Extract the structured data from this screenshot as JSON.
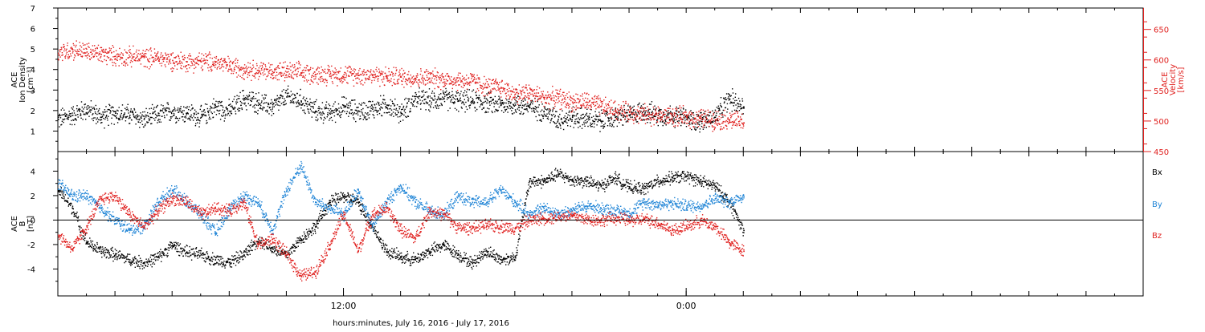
{
  "chart_data": [
    {
      "type": "scatter",
      "title": "",
      "xlabel": "hours:minutes, July 16, 2016 - July 17, 2016",
      "x_units": "hours since 00:00 July 16, 2016",
      "xlim": [
        2.0,
        40.0
      ],
      "x_ticks": [
        {
          "value": 12,
          "label": "12:00"
        },
        {
          "value": 24,
          "label": "0:00"
        }
      ],
      "ylabel_left": [
        "ACE",
        "Ion Density",
        "[cm⁻³]"
      ],
      "ylabel_right": [
        "ACE",
        "Velocity",
        "[km/s]"
      ],
      "ylim_left": [
        0,
        7
      ],
      "ylim_right": [
        450,
        685
      ],
      "y_ticks_left": [
        1,
        2,
        3,
        4,
        5,
        6,
        7
      ],
      "y_ticks_right": [
        450,
        500,
        550,
        600,
        650
      ],
      "grid": false,
      "series": [
        {
          "name": "",
          "axis": "left",
          "color": "#000000",
          "x": [
            2.0,
            2.5,
            3.0,
            3.5,
            4.0,
            4.5,
            5.0,
            5.5,
            6.0,
            6.5,
            7.0,
            7.5,
            8.0,
            8.5,
            9.0,
            9.5,
            10.0,
            10.5,
            11.0,
            11.5,
            12.0,
            12.5,
            13.0,
            13.5,
            14.0,
            14.5,
            15.0,
            15.5,
            16.0,
            16.5,
            17.0,
            17.5,
            18.0,
            18.5,
            19.0,
            19.5,
            20.0,
            20.5,
            21.0,
            21.5,
            22.0,
            22.5,
            23.0,
            23.5,
            24.0,
            24.5,
            25.0,
            25.5,
            26.0
          ],
          "values": [
            1.6,
            1.8,
            2.1,
            1.7,
            1.9,
            1.8,
            1.6,
            1.8,
            2.0,
            1.9,
            1.7,
            2.2,
            2.0,
            2.6,
            2.4,
            2.2,
            2.7,
            2.5,
            2.0,
            1.9,
            2.2,
            2.0,
            2.1,
            2.3,
            1.9,
            2.6,
            2.5,
            2.6,
            2.5,
            2.5,
            2.4,
            2.3,
            2.3,
            2.2,
            2.0,
            1.6,
            1.7,
            1.6,
            1.5,
            1.7,
            1.8,
            2.0,
            1.8,
            1.8,
            1.6,
            1.5,
            1.7,
            2.6,
            2.2
          ]
        },
        {
          "name": "",
          "axis": "right",
          "color": "#e0201e",
          "x": [
            2.0,
            2.5,
            3.0,
            3.5,
            4.0,
            4.5,
            5.0,
            5.5,
            6.0,
            6.5,
            7.0,
            7.5,
            8.0,
            8.5,
            9.0,
            9.5,
            10.0,
            10.5,
            11.0,
            11.5,
            12.0,
            12.5,
            13.0,
            13.5,
            14.0,
            14.5,
            15.0,
            15.5,
            16.0,
            16.5,
            17.0,
            17.5,
            18.0,
            18.5,
            19.0,
            19.5,
            20.0,
            20.5,
            21.0,
            21.5,
            22.0,
            22.5,
            23.0,
            23.5,
            24.0,
            24.5,
            25.0,
            25.5,
            26.0
          ],
          "values": [
            612,
            618,
            614,
            610,
            607,
            606,
            605,
            604,
            600,
            598,
            598,
            597,
            590,
            587,
            584,
            582,
            581,
            580,
            577,
            577,
            577,
            576,
            577,
            573,
            573,
            571,
            571,
            569,
            567,
            566,
            556,
            556,
            545,
            547,
            539,
            538,
            532,
            532,
            525,
            518,
            515,
            512,
            510,
            508,
            507,
            505,
            503,
            503,
            498
          ]
        }
      ]
    },
    {
      "type": "scatter",
      "title": "",
      "xlabel": "hours:minutes, July 16, 2016 - July 17, 2016",
      "x_units": "hours since 00:00 July 16, 2016",
      "xlim": [
        2.0,
        40.0
      ],
      "ylabel": [
        "ACE",
        "B",
        "[nT]"
      ],
      "ylim": [
        -6.2,
        5.6
      ],
      "y_ticks": [
        -4,
        -2,
        0,
        2,
        4
      ],
      "zero_line": true,
      "grid": false,
      "series": [
        {
          "name": "Bx",
          "color": "#000000",
          "x": [
            2.0,
            2.5,
            3.0,
            3.5,
            4.0,
            4.5,
            5.0,
            5.5,
            6.0,
            6.5,
            7.0,
            7.5,
            8.0,
            8.5,
            9.0,
            9.5,
            10.0,
            10.5,
            11.0,
            11.5,
            12.0,
            12.5,
            13.0,
            13.5,
            14.0,
            14.5,
            15.0,
            15.5,
            16.0,
            16.5,
            17.0,
            17.5,
            18.0,
            18.5,
            19.0,
            19.5,
            20.0,
            20.5,
            21.0,
            21.5,
            22.0,
            22.5,
            23.0,
            23.5,
            24.0,
            24.5,
            25.0,
            25.5,
            26.0
          ],
          "values": [
            2.5,
            1.0,
            -1.8,
            -2.5,
            -2.8,
            -3.2,
            -3.5,
            -3.0,
            -2.0,
            -2.6,
            -2.8,
            -3.2,
            -3.4,
            -2.8,
            -1.5,
            -2.3,
            -2.8,
            -1.5,
            -0.5,
            1.5,
            2.0,
            1.5,
            -0.5,
            -2.5,
            -3.0,
            -3.2,
            -2.5,
            -2.0,
            -2.8,
            -3.5,
            -2.5,
            -3.2,
            -3.0,
            3.2,
            3.2,
            3.8,
            3.3,
            3.2,
            2.8,
            3.5,
            2.7,
            2.6,
            3.2,
            3.5,
            3.6,
            3.2,
            2.8,
            1.5,
            -0.8
          ]
        },
        {
          "name": "By",
          "color": "#1f84d6",
          "x": [
            2.0,
            2.5,
            3.0,
            3.5,
            4.0,
            4.5,
            5.0,
            5.5,
            6.0,
            6.5,
            7.0,
            7.5,
            8.0,
            8.5,
            9.0,
            9.5,
            10.0,
            10.5,
            11.0,
            11.5,
            12.0,
            12.5,
            13.0,
            13.5,
            14.0,
            14.5,
            15.0,
            15.5,
            16.0,
            16.5,
            17.0,
            17.5,
            18.0,
            18.5,
            19.0,
            19.5,
            20.0,
            20.5,
            21.0,
            21.5,
            22.0,
            22.5,
            23.0,
            23.5,
            24.0,
            24.5,
            25.0,
            25.5,
            26.0
          ],
          "values": [
            3.0,
            2.0,
            2.0,
            1.0,
            0.0,
            -0.8,
            -0.5,
            1.5,
            2.5,
            1.5,
            0.5,
            -1.0,
            1.0,
            2.0,
            1.5,
            -0.8,
            2.5,
            4.5,
            1.5,
            1.0,
            0.5,
            2.5,
            -0.5,
            1.5,
            2.8,
            1.5,
            0.8,
            0.5,
            2.0,
            1.5,
            1.5,
            2.5,
            1.5,
            0.5,
            1.0,
            0.6,
            0.8,
            1.2,
            1.0,
            0.8,
            0.6,
            1.5,
            1.3,
            1.4,
            1.2,
            1.2,
            1.8,
            1.5,
            2.0
          ]
        },
        {
          "name": "Bz",
          "color": "#e0201e",
          "x": [
            2.0,
            2.5,
            3.0,
            3.5,
            4.0,
            4.5,
            5.0,
            5.5,
            6.0,
            6.5,
            7.0,
            7.5,
            8.0,
            8.5,
            9.0,
            9.5,
            10.0,
            10.5,
            11.0,
            11.5,
            12.0,
            12.5,
            13.0,
            13.5,
            14.0,
            14.5,
            15.0,
            15.5,
            16.0,
            16.5,
            17.0,
            17.5,
            18.0,
            18.5,
            19.0,
            19.5,
            20.0,
            20.5,
            21.0,
            21.5,
            22.0,
            22.5,
            23.0,
            23.5,
            24.0,
            24.5,
            25.0,
            25.5,
            26.0
          ],
          "values": [
            -1.2,
            -2.3,
            -0.5,
            1.8,
            2.0,
            0.5,
            -0.5,
            0.8,
            1.8,
            1.5,
            0.5,
            1.0,
            0.8,
            1.5,
            -2.0,
            -1.5,
            -2.8,
            -4.5,
            -4.2,
            -2.0,
            0.5,
            -2.5,
            0.5,
            1.0,
            -0.8,
            -1.5,
            0.8,
            0.5,
            -0.6,
            -0.6,
            -0.4,
            -0.5,
            -0.6,
            0.0,
            0.2,
            0.3,
            0.4,
            0.1,
            0.0,
            0.2,
            0.0,
            0.1,
            -0.2,
            -0.8,
            -0.5,
            0.0,
            -0.5,
            -1.8,
            -2.5
          ]
        }
      ]
    }
  ]
}
